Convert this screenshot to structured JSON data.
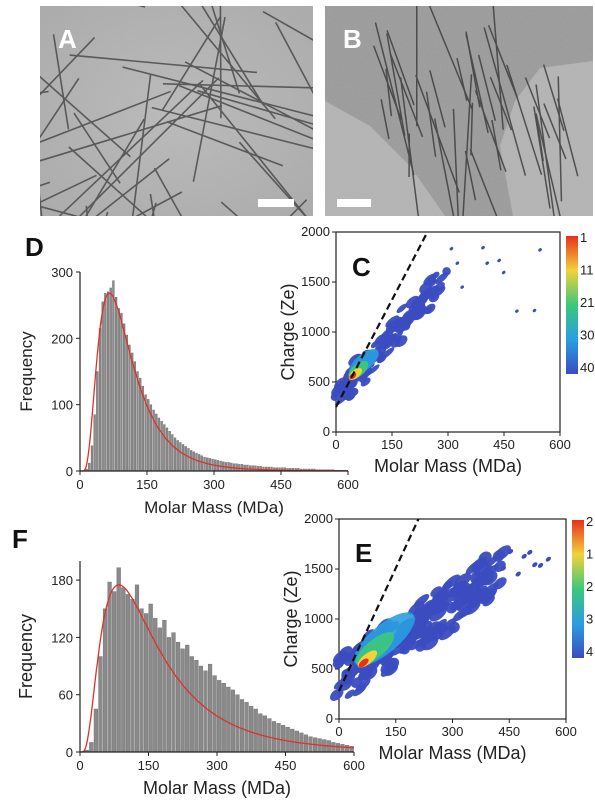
{
  "panels": {
    "A": {
      "label": "A"
    },
    "B": {
      "label": "B"
    }
  },
  "colors": {
    "bar": "#8a8a8a",
    "fit": "#e0302a",
    "dash": "#111111",
    "cmap": [
      "#3a4cc0",
      "#2a9ee0",
      "#3cc87a",
      "#f2d23a",
      "#e8301a"
    ]
  },
  "colorbar_C": [
    "1",
    "11",
    "21",
    "30",
    "40"
  ],
  "colorbar_E": [
    "2",
    "1",
    "2",
    "3",
    "4"
  ],
  "chart_data": [
    {
      "id": "D",
      "panel_label": "D",
      "type": "bar",
      "xlabel": "Molar Mass (MDa)",
      "ylabel": "Frequency",
      "xlim": [
        0,
        600
      ],
      "ylim": [
        0,
        300
      ],
      "xticks": [
        0,
        150,
        300,
        450,
        600
      ],
      "yticks": [
        0,
        100,
        200,
        300
      ],
      "bin_width": 6,
      "values": [
        0,
        0,
        3,
        12,
        38,
        85,
        150,
        215,
        255,
        268,
        270,
        276,
        287,
        262,
        245,
        238,
        222,
        205,
        190,
        178,
        165,
        150,
        140,
        128,
        115,
        108,
        100,
        92,
        86,
        80,
        75,
        70,
        65,
        60,
        55,
        50,
        46,
        43,
        40,
        37,
        34,
        31,
        29,
        27,
        25,
        23,
        21,
        20,
        19,
        18,
        17,
        16,
        15,
        14,
        13,
        13,
        12,
        11,
        11,
        10,
        10,
        9,
        9,
        8,
        8,
        8,
        7,
        7,
        6,
        6,
        6,
        6,
        5,
        5,
        5,
        5,
        5,
        4,
        4,
        4,
        4,
        4,
        3,
        3,
        3,
        3,
        3,
        3,
        2,
        2,
        2,
        2,
        2,
        2,
        2,
        1,
        1,
        1,
        1,
        1
      ],
      "fit": {
        "peak_x": 66,
        "peak_y": 268,
        "shape": "lognormal",
        "sigma": 0.58
      }
    },
    {
      "id": "C",
      "panel_label": "C",
      "type": "heatmap",
      "xlabel": "Molar Mass (MDa)",
      "ylabel": "Charge (Ze)",
      "xlim": [
        0,
        600
      ],
      "ylim": [
        0,
        2000
      ],
      "xticks": [
        0,
        150,
        300,
        450,
        600
      ],
      "yticks": [
        0,
        500,
        1000,
        1500,
        2000
      ],
      "dashed_line": [
        [
          0,
          250
        ],
        [
          245,
          2000
        ]
      ]
    },
    {
      "id": "F",
      "panel_label": "F",
      "type": "bar",
      "xlabel": "Molar Mass (MDa)",
      "ylabel": "Frequency",
      "xlim": [
        0,
        600
      ],
      "ylim": [
        0,
        200
      ],
      "xticks": [
        0,
        150,
        300,
        450,
        600
      ],
      "yticks": [
        0,
        60,
        120,
        180
      ],
      "bin_width": 10,
      "values": [
        0,
        2,
        10,
        45,
        100,
        150,
        178,
        168,
        193,
        172,
        165,
        160,
        175,
        150,
        145,
        155,
        140,
        130,
        138,
        120,
        125,
        115,
        108,
        112,
        100,
        96,
        90,
        85,
        92,
        80,
        75,
        72,
        68,
        65,
        60,
        55,
        52,
        48,
        45,
        40,
        38,
        35,
        32,
        30,
        28,
        26,
        24,
        22,
        20,
        18,
        16,
        15,
        14,
        13,
        12,
        10,
        9,
        8,
        7,
        6
      ],
      "fit": {
        "peak_x": 85,
        "peak_y": 175,
        "shape": "lognormal",
        "sigma": 0.72
      }
    },
    {
      "id": "E",
      "panel_label": "E",
      "type": "heatmap",
      "xlabel": "Molar Mass (MDa)",
      "ylabel": "Charge (Ze)",
      "xlim": [
        0,
        600
      ],
      "ylim": [
        0,
        2000
      ],
      "xticks": [
        0,
        150,
        300,
        450,
        600
      ],
      "yticks": [
        0,
        500,
        1000,
        1500,
        2000
      ],
      "dashed_line": [
        [
          0,
          280
        ],
        [
          210,
          2000
        ]
      ]
    }
  ]
}
